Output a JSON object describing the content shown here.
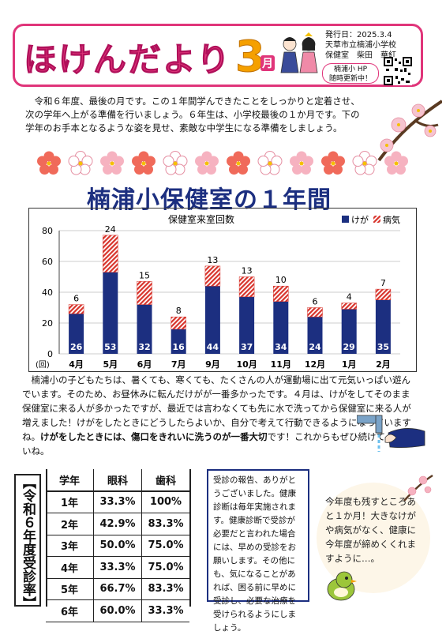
{
  "header": {
    "title": "ほけんだより",
    "month_number": "3",
    "month_kanji": "月",
    "issue_date": "発行日：2025.3.4",
    "school": "天草市立楠浦小学校",
    "office": "保健室　柴田　華紅",
    "hp_notice_line1": "楠浦小 HP",
    "hp_notice_line2": "随時更新中！"
  },
  "intro": "　令和６年度、最後の月です。この１年間学んできたことをしっかりと定着させ、次の学年へ上がる準備を行いましょう。６年生は、小学校最後の１か月です。下の学年のお手本となるような姿を見せ、素敵な中学生になる準備をしましょう。",
  "section_title": "楠浦小保健室の１年間",
  "chart_data": {
    "type": "bar",
    "title": "保健室来室回数",
    "ylabel": "(回)",
    "ylim": [
      0,
      80
    ],
    "yticks": [
      0,
      20,
      40,
      60,
      80
    ],
    "categories": [
      "4月",
      "5月",
      "6月",
      "7月",
      "9月",
      "10月",
      "11月",
      "12月",
      "1月",
      "2月"
    ],
    "series": [
      {
        "name": "けが",
        "values": [
          26,
          53,
          32,
          16,
          44,
          37,
          34,
          24,
          29,
          35
        ],
        "color": "#1c2f80"
      },
      {
        "name": "病気",
        "values": [
          6,
          24,
          15,
          8,
          13,
          13,
          10,
          6,
          4,
          7
        ],
        "color": "#d8342c"
      }
    ]
  },
  "body": {
    "p1": "　楠浦小の子どもたちは、暑くても、寒くても、たくさんの人が運動場に出て元気いっぱい遊んでいます。そのため、お昼休みに転んだけがが一番多かったです。４月は、けがをしてそのまま保健室に来る人が多かったですが、最近では言わなくても先に水で洗ってから保健室に来る人が増えました！けがをしたときにどうしたらよいか、自分で考えて行動できるようになっていますね。",
    "p1_em": "けがをしたときには、傷口をきれいに洗うのが一番大切",
    "p1_end": "です！これからもぜひ続けてくださいね。"
  },
  "rates": {
    "vertical_title": "【令和６年度受診率】",
    "headers": [
      "学年",
      "眼科",
      "歯科"
    ],
    "rows": [
      [
        "1年",
        "33.3%",
        "100%"
      ],
      [
        "2年",
        "42.9%",
        "83.3%"
      ],
      [
        "3年",
        "50.0%",
        "75.0%"
      ],
      [
        "4年",
        "33.3%",
        "75.0%"
      ],
      [
        "5年",
        "66.7%",
        "83.3%"
      ],
      [
        "6年",
        "60.0%",
        "33.3%"
      ]
    ]
  },
  "notice": "受診の報告、ありがとうございました。健康診断は毎年実施されます。健康診断で受診が必要だと言われた場合には、早めの受診をお願いします。その他にも、気になることがあれば、困る前に早めに受診し、必要な治療を受けられるようにしましょう。",
  "note": "今年度も残すところあと１か月！大きなけがや病気がなく、健康に今年度が締めくくれますように…。",
  "colors": {
    "pink": "#e0357a",
    "navy": "#1c2f80",
    "red": "#d8342c",
    "orange": "#f5a000"
  }
}
